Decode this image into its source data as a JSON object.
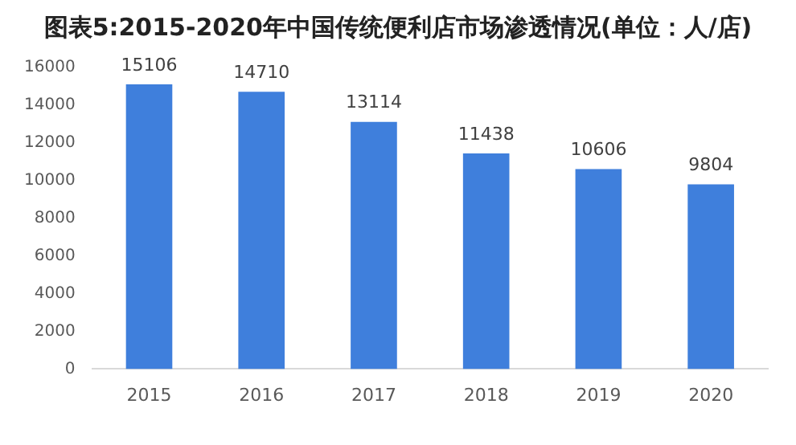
{
  "chart_data": {
    "type": "bar",
    "title": "图表5:2015-2020年中国传统便利店市场渗透情况(单位：人/店)",
    "categories": [
      "2015",
      "2016",
      "2017",
      "2018",
      "2019",
      "2020"
    ],
    "values": [
      15106,
      14710,
      13114,
      11438,
      10606,
      9804
    ],
    "color": "#3f7fdc",
    "ylim": [
      0,
      16000
    ],
    "yticks": [
      0,
      2000,
      4000,
      6000,
      8000,
      10000,
      12000,
      14000,
      16000
    ],
    "grid": false,
    "data_labels": true
  }
}
